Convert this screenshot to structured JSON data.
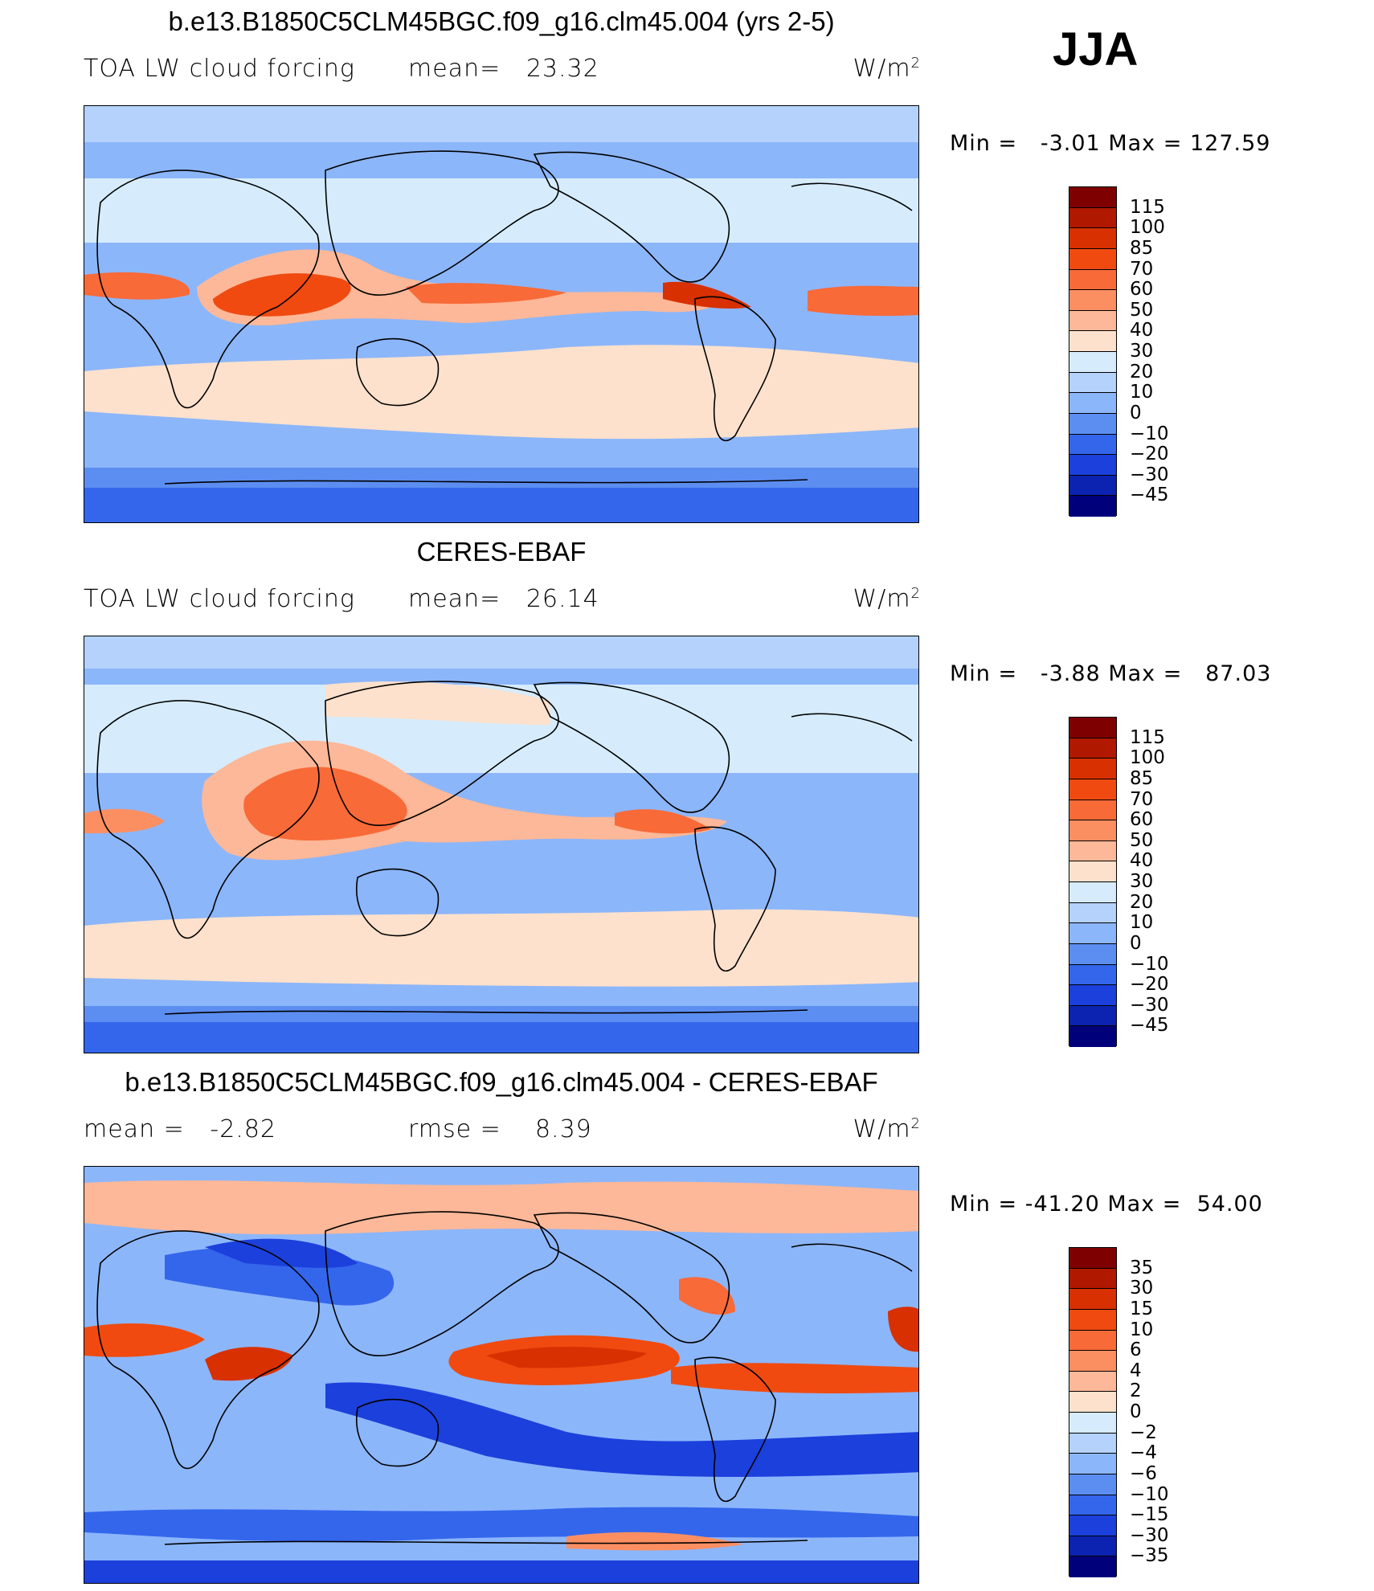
{
  "season": "JJA",
  "panels": [
    {
      "title": "b.e13.B1850C5CLM45BGC.f09_g16.clm45.004 (yrs 2-5)",
      "left_label": "TOA LW cloud forcing",
      "stat_label": "mean=",
      "stat_value": "23.32",
      "unit": "W/m",
      "unit_exp": "2",
      "min_label": "Min =",
      "min": "-3.01",
      "max_label": "Max =",
      "max": "127.59",
      "levels": [
        "115",
        "100",
        "85",
        "70",
        "60",
        "50",
        "40",
        "30",
        "20",
        "10",
        "0",
        "-10",
        "-20",
        "-30",
        "-45"
      ],
      "colors": [
        "#7f0000",
        "#b01800",
        "#d83000",
        "#f04a10",
        "#f86a38",
        "#fb8f62",
        "#fcb898",
        "#fde1cc",
        "#d6ecfc",
        "#b4d2fc",
        "#8cb6fa",
        "#5c8ef2",
        "#3466ec",
        "#1c40dc",
        "#0c22b0",
        "#00007a"
      ]
    },
    {
      "title": "CERES-EBAF",
      "left_label": "TOA LW cloud forcing",
      "stat_label": "mean=",
      "stat_value": "26.14",
      "unit": "W/m",
      "unit_exp": "2",
      "min_label": "Min =",
      "min": "-3.88",
      "max_label": "Max =",
      "max": "87.03",
      "levels": [
        "115",
        "100",
        "85",
        "70",
        "60",
        "50",
        "40",
        "30",
        "20",
        "10",
        "0",
        "-10",
        "-20",
        "-30",
        "-45"
      ],
      "colors": [
        "#7f0000",
        "#b01800",
        "#d83000",
        "#f04a10",
        "#f86a38",
        "#fb8f62",
        "#fcb898",
        "#fde1cc",
        "#d6ecfc",
        "#b4d2fc",
        "#8cb6fa",
        "#5c8ef2",
        "#3466ec",
        "#1c40dc",
        "#0c22b0",
        "#00007a"
      ]
    },
    {
      "title": "b.e13.B1850C5CLM45BGC.f09_g16.clm45.004 - CERES-EBAF",
      "left_label": "mean =",
      "left_value": "-2.82",
      "stat_label": "rmse =",
      "stat_value": "8.39",
      "unit": "W/m",
      "unit_exp": "2",
      "min_label": "Min =",
      "min": "-41.20",
      "max_label": "Max =",
      "max": "54.00",
      "levels": [
        "35",
        "30",
        "15",
        "10",
        "6",
        "4",
        "2",
        "0",
        "-2",
        "-4",
        "-6",
        "-10",
        "-15",
        "-30",
        "-35"
      ],
      "colors": [
        "#7f0000",
        "#b01800",
        "#d83000",
        "#f04a10",
        "#f86a38",
        "#fb8f62",
        "#fcb898",
        "#fde1cc",
        "#d6ecfc",
        "#b4d2fc",
        "#8cb6fa",
        "#5c8ef2",
        "#3466ec",
        "#1c40dc",
        "#0c22b0",
        "#00007a"
      ]
    }
  ]
}
